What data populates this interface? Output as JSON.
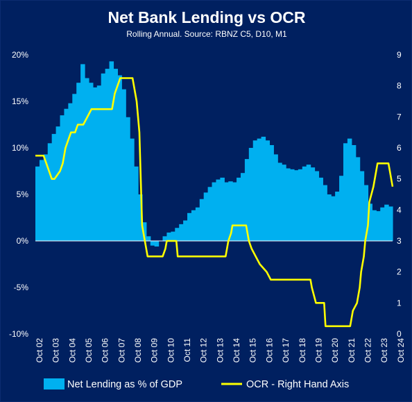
{
  "chart_data": {
    "type": "bar+line",
    "title": "Net Bank Lending vs OCR",
    "subtitle": "Rolling Annual. Source: RBNZ C5, D10, M1",
    "x_range": [
      "2002-07",
      "2024-04"
    ],
    "x_ticks": [
      "Oct 02",
      "Oct 03",
      "Oct 04",
      "Oct 05",
      "Oct 06",
      "Oct 07",
      "Oct 08",
      "Oct 09",
      "Oct 10",
      "Oct 11",
      "Oct 12",
      "Oct 13",
      "Oct 14",
      "Oct 15",
      "Oct 16",
      "Oct 17",
      "Oct 18",
      "Oct 19",
      "Oct 20",
      "Oct 21",
      "Oct 22",
      "Oct 23",
      "Oct 24"
    ],
    "y_left": {
      "min": -10,
      "max": 20,
      "ticks": [
        "-10%",
        "-5%",
        "0%",
        "5%",
        "10%",
        "15%",
        "20%"
      ],
      "tick_values": [
        -10,
        -5,
        0,
        5,
        10,
        15,
        20
      ]
    },
    "y_right": {
      "min": 0,
      "max": 9,
      "ticks": [
        "0",
        "1",
        "2",
        "3",
        "4",
        "5",
        "6",
        "7",
        "8",
        "9"
      ],
      "tick_values": [
        0,
        1,
        2,
        3,
        4,
        5,
        6,
        7,
        8,
        9
      ]
    },
    "series": [
      {
        "name": "Net Lending as % of GDP",
        "type": "bar",
        "axis": "left",
        "color": "#00b0f0",
        "points": [
          [
            "2002-07",
            8.0
          ],
          [
            "2002-10",
            8.7
          ],
          [
            "2003-01",
            9.3
          ],
          [
            "2003-04",
            10.5
          ],
          [
            "2003-07",
            11.5
          ],
          [
            "2003-10",
            12.3
          ],
          [
            "2004-01",
            13.5
          ],
          [
            "2004-04",
            14.2
          ],
          [
            "2004-07",
            14.8
          ],
          [
            "2004-10",
            15.8
          ],
          [
            "2005-01",
            17.0
          ],
          [
            "2005-04",
            19.0
          ],
          [
            "2005-07",
            17.5
          ],
          [
            "2005-10",
            17.0
          ],
          [
            "2006-01",
            16.5
          ],
          [
            "2006-04",
            16.7
          ],
          [
            "2006-07",
            18.0
          ],
          [
            "2006-10",
            18.5
          ],
          [
            "2007-01",
            19.3
          ],
          [
            "2007-04",
            18.5
          ],
          [
            "2007-07",
            17.8
          ],
          [
            "2007-10",
            16.3
          ],
          [
            "2008-01",
            13.3
          ],
          [
            "2008-04",
            11.0
          ],
          [
            "2008-07",
            8.0
          ],
          [
            "2008-10",
            5.0
          ],
          [
            "2009-01",
            2.0
          ],
          [
            "2009-04",
            0.5
          ],
          [
            "2009-07",
            -0.5
          ],
          [
            "2009-10",
            -0.6
          ],
          [
            "2010-01",
            0.0
          ],
          [
            "2010-04",
            0.5
          ],
          [
            "2010-07",
            0.9
          ],
          [
            "2010-10",
            1.0
          ],
          [
            "2011-01",
            1.4
          ],
          [
            "2011-04",
            1.8
          ],
          [
            "2011-07",
            2.2
          ],
          [
            "2011-10",
            3.0
          ],
          [
            "2012-01",
            3.3
          ],
          [
            "2012-04",
            3.6
          ],
          [
            "2012-07",
            4.5
          ],
          [
            "2012-10",
            5.2
          ],
          [
            "2013-01",
            5.8
          ],
          [
            "2013-04",
            6.3
          ],
          [
            "2013-07",
            6.6
          ],
          [
            "2013-10",
            6.8
          ],
          [
            "2014-01",
            6.3
          ],
          [
            "2014-04",
            6.4
          ],
          [
            "2014-07",
            6.3
          ],
          [
            "2014-10",
            6.8
          ],
          [
            "2015-01",
            7.3
          ],
          [
            "2015-04",
            8.8
          ],
          [
            "2015-07",
            10.0
          ],
          [
            "2015-10",
            10.8
          ],
          [
            "2016-01",
            11.0
          ],
          [
            "2016-04",
            11.2
          ],
          [
            "2016-07",
            10.8
          ],
          [
            "2016-10",
            10.3
          ],
          [
            "2017-01",
            9.3
          ],
          [
            "2017-04",
            8.4
          ],
          [
            "2017-07",
            8.2
          ],
          [
            "2017-10",
            7.8
          ],
          [
            "2018-01",
            7.7
          ],
          [
            "2018-04",
            7.6
          ],
          [
            "2018-07",
            7.7
          ],
          [
            "2018-10",
            8.0
          ],
          [
            "2019-01",
            8.2
          ],
          [
            "2019-04",
            7.9
          ],
          [
            "2019-07",
            7.5
          ],
          [
            "2019-10",
            6.8
          ],
          [
            "2020-01",
            6.0
          ],
          [
            "2020-04",
            5.0
          ],
          [
            "2020-07",
            4.8
          ],
          [
            "2020-10",
            5.3
          ],
          [
            "2021-01",
            7.0
          ],
          [
            "2021-04",
            10.5
          ],
          [
            "2021-07",
            11.0
          ],
          [
            "2021-10",
            10.3
          ],
          [
            "2022-01",
            9.0
          ],
          [
            "2022-04",
            7.5
          ],
          [
            "2022-07",
            6.0
          ],
          [
            "2022-10",
            4.0
          ],
          [
            "2023-01",
            3.3
          ],
          [
            "2023-04",
            3.2
          ],
          [
            "2023-07",
            3.6
          ],
          [
            "2023-10",
            3.9
          ],
          [
            "2024-01",
            3.7
          ]
        ]
      },
      {
        "name": "OCR - Right Hand Axis",
        "type": "line",
        "axis": "right",
        "color": "#ffff00",
        "points": [
          [
            "2002-07",
            5.75
          ],
          [
            "2002-10",
            5.75
          ],
          [
            "2003-01",
            5.75
          ],
          [
            "2003-03",
            5.5
          ],
          [
            "2003-05",
            5.25
          ],
          [
            "2003-07",
            5.0
          ],
          [
            "2003-09",
            5.0
          ],
          [
            "2004-01",
            5.25
          ],
          [
            "2004-03",
            5.5
          ],
          [
            "2004-05",
            6.0
          ],
          [
            "2004-07",
            6.25
          ],
          [
            "2004-09",
            6.5
          ],
          [
            "2004-12",
            6.5
          ],
          [
            "2005-02",
            6.75
          ],
          [
            "2005-06",
            6.75
          ],
          [
            "2005-09",
            7.0
          ],
          [
            "2005-12",
            7.25
          ],
          [
            "2007-03",
            7.25
          ],
          [
            "2007-05",
            7.75
          ],
          [
            "2007-07",
            8.0
          ],
          [
            "2007-09",
            8.25
          ],
          [
            "2008-06",
            8.25
          ],
          [
            "2008-07",
            8.0
          ],
          [
            "2008-09",
            7.5
          ],
          [
            "2008-11",
            6.5
          ],
          [
            "2008-12",
            5.0
          ],
          [
            "2009-01",
            3.5
          ],
          [
            "2009-03",
            3.0
          ],
          [
            "2009-05",
            2.5
          ],
          [
            "2010-04",
            2.5
          ],
          [
            "2010-06",
            2.75
          ],
          [
            "2010-07",
            3.0
          ],
          [
            "2011-02",
            3.0
          ],
          [
            "2011-03",
            2.5
          ],
          [
            "2014-02",
            2.5
          ],
          [
            "2014-03",
            2.75
          ],
          [
            "2014-04",
            3.0
          ],
          [
            "2014-06",
            3.25
          ],
          [
            "2014-07",
            3.5
          ],
          [
            "2015-05",
            3.5
          ],
          [
            "2015-06",
            3.25
          ],
          [
            "2015-07",
            3.0
          ],
          [
            "2015-09",
            2.75
          ],
          [
            "2015-12",
            2.5
          ],
          [
            "2016-03",
            2.25
          ],
          [
            "2016-08",
            2.0
          ],
          [
            "2016-11",
            1.75
          ],
          [
            "2019-04",
            1.75
          ],
          [
            "2019-05",
            1.5
          ],
          [
            "2019-08",
            1.0
          ],
          [
            "2020-02",
            1.0
          ],
          [
            "2020-03",
            0.25
          ],
          [
            "2021-09",
            0.25
          ],
          [
            "2021-10",
            0.5
          ],
          [
            "2021-11",
            0.75
          ],
          [
            "2022-02",
            1.0
          ],
          [
            "2022-04",
            1.5
          ],
          [
            "2022-05",
            2.0
          ],
          [
            "2022-07",
            2.5
          ],
          [
            "2022-08",
            3.0
          ],
          [
            "2022-10",
            3.5
          ],
          [
            "2022-11",
            4.25
          ],
          [
            "2023-02",
            4.75
          ],
          [
            "2023-05",
            5.5
          ],
          [
            "2024-01",
            5.5
          ],
          [
            "2024-02",
            5.25
          ],
          [
            "2024-03",
            5.0
          ],
          [
            "2024-04",
            4.75
          ]
        ]
      }
    ],
    "legend": {
      "position": "bottom"
    }
  }
}
